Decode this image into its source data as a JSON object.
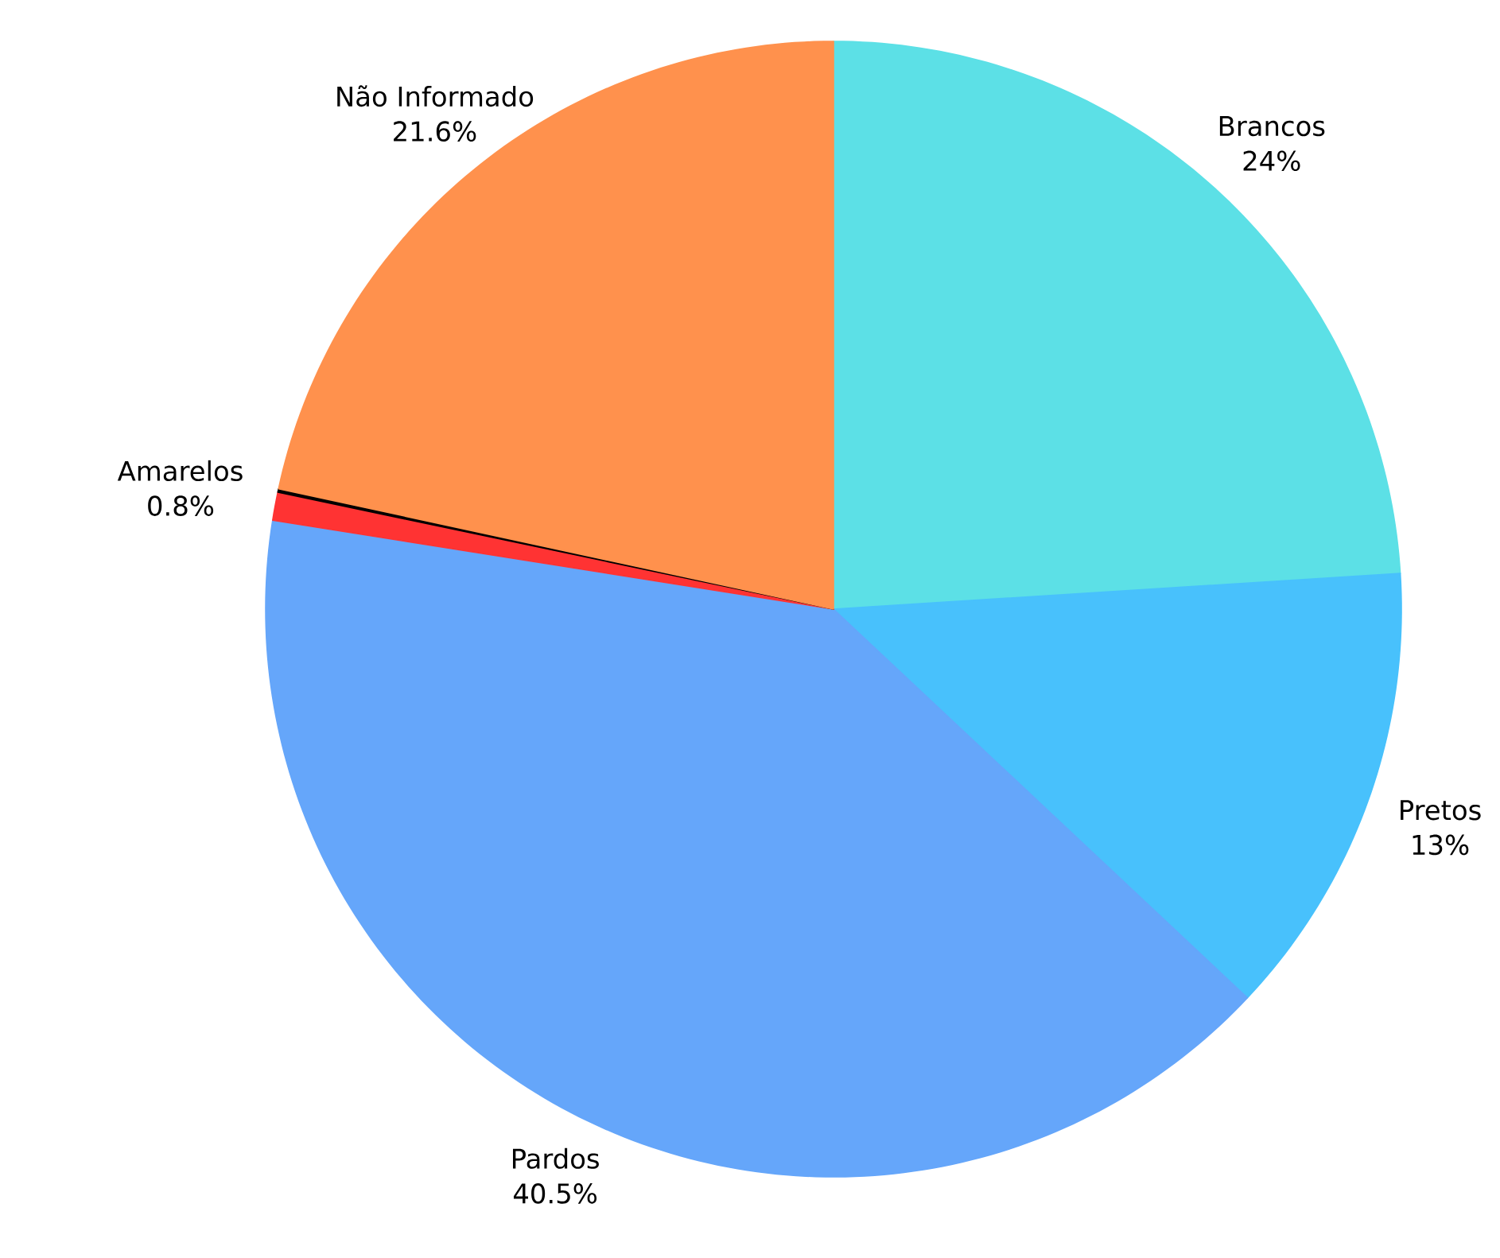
{
  "chart_data": {
    "type": "pie",
    "categories": [
      "Brancos",
      "Pretos",
      "Pardos",
      "Amarelos",
      null,
      "Não Informado"
    ],
    "values": [
      24,
      13,
      40.5,
      0.8,
      0.1,
      21.6
    ],
    "value_labels": [
      "24%",
      "13%",
      "40.5%",
      "0.8%",
      null,
      "21.6%"
    ],
    "colors": [
      "#5ce0e6",
      "#48c1fc",
      "#65a6fa",
      "#ff3333",
      "#000000",
      "#ff914d"
    ]
  }
}
